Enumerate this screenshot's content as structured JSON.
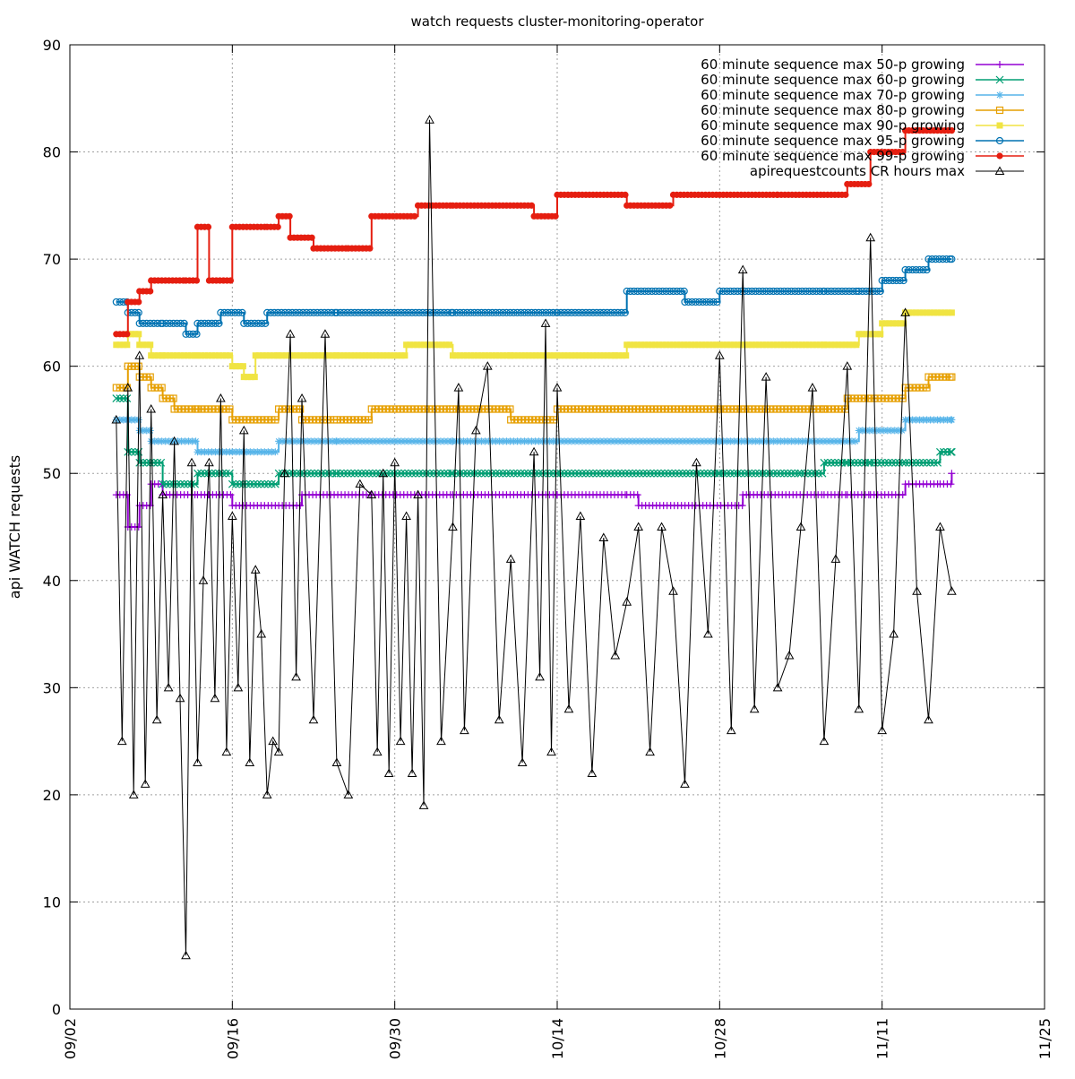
{
  "chart_data": {
    "type": "line",
    "title": "watch requests cluster-monitoring-operator",
    "ylabel": "api WATCH requests",
    "xlabel": "",
    "ylim": [
      0,
      90
    ],
    "yticks": [
      0,
      10,
      20,
      30,
      40,
      50,
      60,
      70,
      80,
      90
    ],
    "xlim": [
      "2021-09-02",
      "2021-11-25"
    ],
    "xticks": [
      "09/02",
      "09/16",
      "09/30",
      "10/14",
      "10/28",
      "11/11",
      "11/25"
    ],
    "grid": true,
    "legend_position": "top-right",
    "series": [
      {
        "name": "60 minute sequence max 50-p growing",
        "color": "#9400d3",
        "marker": "plus",
        "x": [
          "09/06",
          "09/07",
          "09/08",
          "09/09",
          "09/10",
          "09/13",
          "09/14",
          "09/16",
          "09/20",
          "09/22",
          "09/28",
          "10/05",
          "10/14",
          "10/20",
          "10/21",
          "10/30",
          "11/06",
          "11/08",
          "11/10",
          "11/13",
          "11/16",
          "11/17"
        ],
        "y": [
          48,
          45,
          47,
          49,
          48,
          48,
          48,
          47,
          47,
          48,
          48,
          48,
          48,
          48,
          47,
          48,
          48,
          48,
          48,
          49,
          49,
          50
        ]
      },
      {
        "name": "60 minute sequence max 60-p growing",
        "color": "#009e73",
        "marker": "x",
        "x": [
          "09/06",
          "09/07",
          "09/08",
          "09/10",
          "09/13",
          "09/16",
          "09/20",
          "09/25",
          "10/05",
          "10/14",
          "10/28",
          "11/04",
          "11/06",
          "11/08",
          "11/10",
          "11/13",
          "11/16",
          "11/17"
        ],
        "y": [
          57,
          52,
          51,
          49,
          50,
          49,
          50,
          50,
          50,
          50,
          50,
          50,
          51,
          51,
          51,
          51,
          52,
          52
        ]
      },
      {
        "name": "60 minute sequence max 70-p growing",
        "color": "#56b4e9",
        "marker": "star",
        "x": [
          "09/06",
          "09/07",
          "09/08",
          "09/09",
          "09/11",
          "09/13",
          "09/16",
          "09/20",
          "09/25",
          "10/05",
          "10/14",
          "10/28",
          "11/05",
          "11/09",
          "11/13",
          "11/16",
          "11/17"
        ],
        "y": [
          55,
          55,
          54,
          53,
          53,
          52,
          52,
          53,
          53,
          53,
          53,
          53,
          53,
          54,
          55,
          55,
          55
        ]
      },
      {
        "name": "60 minute sequence max 80-p growing",
        "color": "#e69f00",
        "marker": "square-open",
        "x": [
          "09/06",
          "09/07",
          "09/08",
          "09/09",
          "09/10",
          "09/11",
          "09/13",
          "09/16",
          "09/20",
          "09/22",
          "09/25",
          "09/28",
          "10/05",
          "10/10",
          "10/14",
          "10/28",
          "11/06",
          "11/08",
          "11/10",
          "11/13",
          "11/15",
          "11/17"
        ],
        "y": [
          58,
          60,
          59,
          58,
          57,
          56,
          56,
          55,
          56,
          55,
          55,
          56,
          56,
          55,
          56,
          56,
          56,
          57,
          57,
          58,
          59,
          59
        ]
      },
      {
        "name": "60 minute sequence max 90-p growing",
        "color": "#f0e442",
        "marker": "square",
        "x": [
          "09/06",
          "09/07",
          "09/08",
          "09/09",
          "09/10",
          "09/13",
          "09/16",
          "09/17",
          "09/18",
          "09/20",
          "09/25",
          "10/01",
          "10/05",
          "10/10",
          "10/14",
          "10/19",
          "10/20",
          "10/28",
          "11/06",
          "11/09",
          "11/11",
          "11/13",
          "11/17"
        ],
        "y": [
          62,
          63,
          62,
          61,
          61,
          61,
          60,
          59,
          61,
          61,
          61,
          62,
          61,
          61,
          61,
          61,
          62,
          62,
          62,
          63,
          64,
          65,
          65
        ]
      },
      {
        "name": "60 minute sequence max 95-p growing",
        "color": "#0072b2",
        "marker": "circle",
        "x": [
          "09/06",
          "09/07",
          "09/08",
          "09/10",
          "09/12",
          "09/13",
          "09/15",
          "09/17",
          "09/19",
          "09/25",
          "10/05",
          "10/14",
          "10/18",
          "10/20",
          "10/25",
          "10/28",
          "11/06",
          "11/09",
          "11/11",
          "11/13",
          "11/15",
          "11/17"
        ],
        "y": [
          66,
          65,
          64,
          64,
          63,
          64,
          65,
          64,
          65,
          65,
          65,
          65,
          65,
          67,
          66,
          67,
          67,
          67,
          68,
          69,
          70,
          70
        ]
      },
      {
        "name": "60 minute sequence max 99-p growing",
        "color": "#e51e10",
        "marker": "star-solid",
        "x": [
          "09/06",
          "09/07",
          "09/08",
          "09/09",
          "09/12",
          "09/13",
          "09/14",
          "09/16",
          "09/19",
          "09/20",
          "09/21",
          "09/23",
          "09/26",
          "09/28",
          "10/02",
          "10/05",
          "10/12",
          "10/14",
          "10/20",
          "10/24",
          "10/28",
          "11/02",
          "11/06",
          "11/08",
          "11/10",
          "11/13",
          "11/17"
        ],
        "y": [
          63,
          66,
          67,
          68,
          68,
          73,
          68,
          73,
          73,
          74,
          72,
          71,
          71,
          74,
          75,
          75,
          74,
          76,
          75,
          76,
          76,
          76,
          76,
          77,
          80,
          82,
          82
        ]
      },
      {
        "name": "apirequestcounts CR hours max",
        "color": "#000000",
        "marker": "triangle",
        "x": [
          "09/06",
          "09/06",
          "09/07",
          "09/07",
          "09/08",
          "09/08",
          "09/09",
          "09/09",
          "09/10",
          "09/10",
          "09/11",
          "09/11",
          "09/12",
          "09/12",
          "09/13",
          "09/13",
          "09/14",
          "09/14",
          "09/15",
          "09/15",
          "09/16",
          "09/16",
          "09/17",
          "09/17",
          "09/18",
          "09/18",
          "09/19",
          "09/19",
          "09/20",
          "09/20",
          "09/21",
          "09/21",
          "09/22",
          "09/23",
          "09/24",
          "09/25",
          "09/26",
          "09/27",
          "09/28",
          "09/28",
          "09/29",
          "09/29",
          "09/30",
          "09/30",
          "10/01",
          "10/01",
          "10/02",
          "10/02",
          "10/03",
          "10/04",
          "10/05",
          "10/05",
          "10/06",
          "10/07",
          "10/08",
          "10/09",
          "10/10",
          "10/11",
          "10/12",
          "10/12",
          "10/13",
          "10/13",
          "10/14",
          "10/15",
          "10/16",
          "10/17",
          "10/18",
          "10/19",
          "10/20",
          "10/21",
          "10/22",
          "10/23",
          "10/24",
          "10/25",
          "10/26",
          "10/27",
          "10/28",
          "10/29",
          "10/30",
          "10/31",
          "11/01",
          "11/02",
          "11/03",
          "11/04",
          "11/05",
          "11/06",
          "11/07",
          "11/08",
          "11/09",
          "11/10",
          "11/11",
          "11/12",
          "11/13",
          "11/14",
          "11/15",
          "11/16",
          "11/17"
        ],
        "y": [
          55,
          25,
          58,
          20,
          61,
          21,
          56,
          27,
          48,
          30,
          53,
          29,
          5,
          51,
          23,
          40,
          51,
          29,
          57,
          24,
          46,
          30,
          54,
          23,
          41,
          35,
          20,
          25,
          24,
          50,
          63,
          31,
          57,
          27,
          63,
          23,
          20,
          49,
          48,
          24,
          50,
          22,
          51,
          25,
          46,
          22,
          48,
          19,
          83,
          25,
          45,
          58,
          26,
          54,
          60,
          27,
          42,
          23,
          52,
          31,
          64,
          24,
          58,
          28,
          46,
          22,
          44,
          33,
          38,
          45,
          24,
          45,
          39,
          21,
          51,
          35,
          61,
          26,
          69,
          28,
          59,
          30,
          33,
          45,
          58,
          25,
          42,
          60,
          28,
          72,
          26,
          35,
          65,
          39,
          27,
          45,
          39
        ]
      }
    ]
  }
}
